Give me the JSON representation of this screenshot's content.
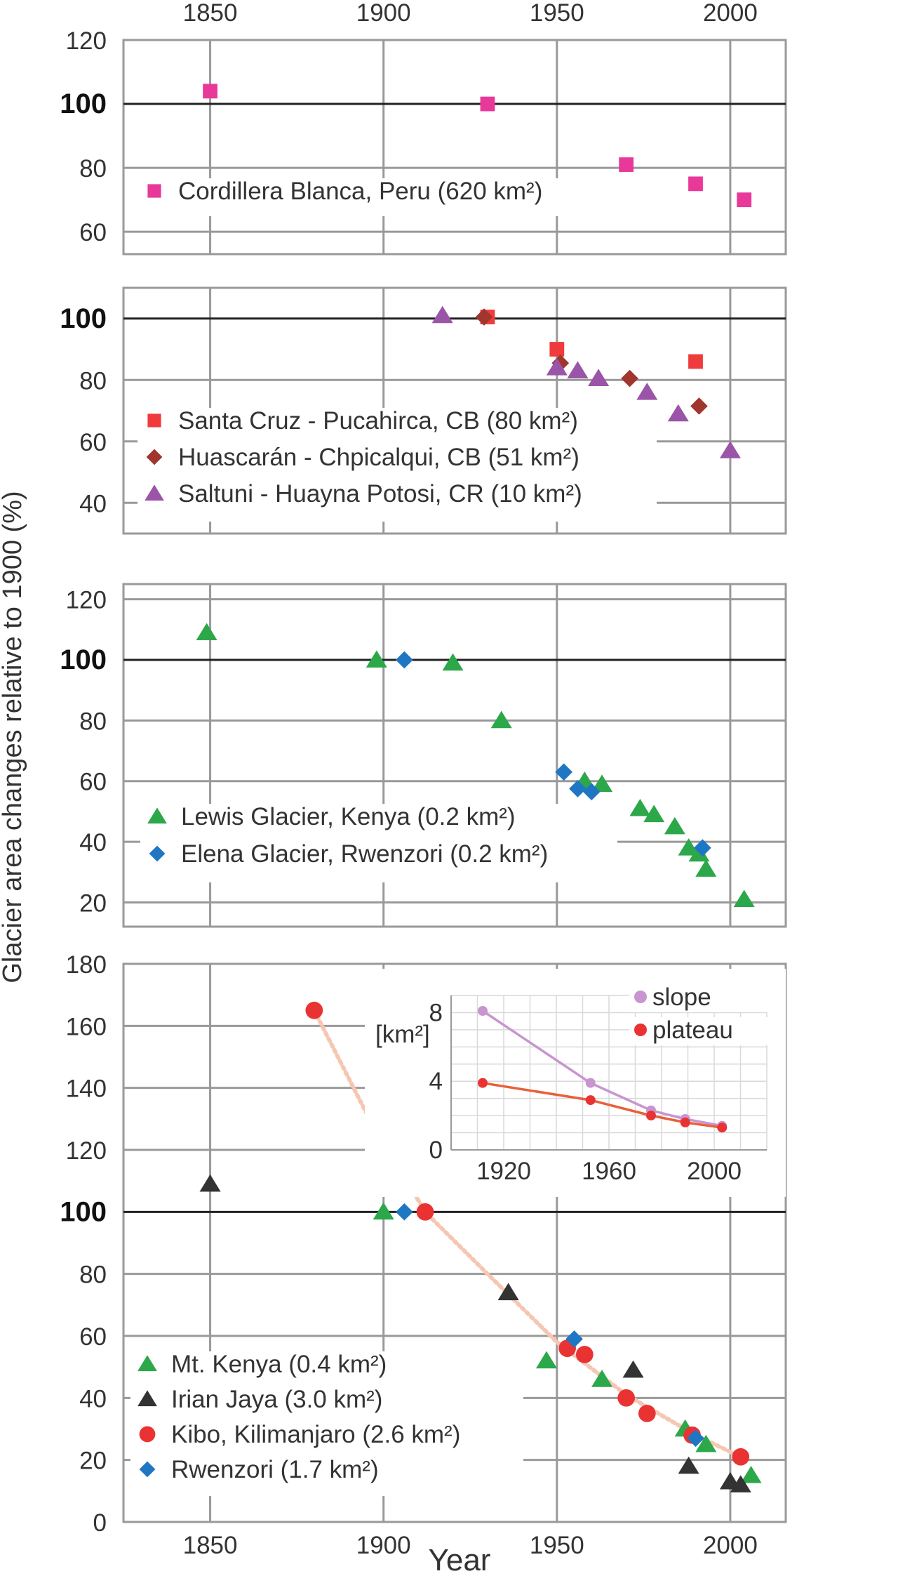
{
  "ylabel": "Glacier area changes relative to 1900 (%)",
  "xlabel": "Year",
  "chart_data": [
    {
      "type": "scatter",
      "xticks": [
        1850,
        1900,
        1950,
        2000
      ],
      "xlim": [
        1825,
        2016
      ],
      "ylim": [
        53,
        120
      ],
      "yticks": [
        60,
        80,
        100,
        120
      ],
      "reference_line": 100,
      "grid": true,
      "legend_position": "bottom-left",
      "series": [
        {
          "name": "Cordillera Blanca, Peru (620 km²)",
          "marker": "square",
          "color": "#e8399a",
          "points": [
            [
              1850,
              104
            ],
            [
              1930,
              100
            ],
            [
              1970,
              81
            ],
            [
              1990,
              75
            ],
            [
              2004,
              70
            ]
          ]
        }
      ]
    },
    {
      "type": "scatter",
      "xlim": [
        1825,
        2016
      ],
      "ylim": [
        30,
        110
      ],
      "yticks": [
        40,
        60,
        80,
        100
      ],
      "reference_line": 100,
      "grid": true,
      "legend_position": "bottom-left",
      "series": [
        {
          "name": "Santa Cruz - Pucahirca, CB (80 km²)",
          "marker": "square",
          "color": "#ef3b3b",
          "points": [
            [
              1930,
              100.5
            ],
            [
              1950,
              90
            ],
            [
              1990,
              86
            ]
          ]
        },
        {
          "name": "Huascarán - Chpicalqui, CB (51 km²)",
          "marker": "diamond",
          "color": "#a0362e",
          "points": [
            [
              1929,
              100.5
            ],
            [
              1951,
              85.5
            ],
            [
              1971,
              80.5
            ],
            [
              1991,
              71.5
            ]
          ]
        },
        {
          "name": "Saltuni - Huayna Potosi, CR (10 km²)",
          "marker": "triangle",
          "color": "#9a55a8",
          "points": [
            [
              1917,
              101
            ],
            [
              1950,
              84
            ],
            [
              1956,
              83
            ],
            [
              1962,
              80.5
            ],
            [
              1976,
              76
            ],
            [
              1985,
              69
            ],
            [
              2000,
              57
            ]
          ]
        }
      ]
    },
    {
      "type": "scatter",
      "xlim": [
        1825,
        2016
      ],
      "ylim": [
        12,
        125
      ],
      "yticks": [
        20,
        40,
        60,
        80,
        100,
        120
      ],
      "reference_line": 100,
      "grid": true,
      "legend_position": "bottom-left",
      "series": [
        {
          "name": "Lewis Glacier, Kenya (0.2 km²)",
          "marker": "triangle",
          "color": "#2ca84a",
          "points": [
            [
              1849,
              109
            ],
            [
              1898,
              100
            ],
            [
              1920,
              99
            ],
            [
              1934,
              80
            ],
            [
              1958,
              60
            ],
            [
              1963,
              59
            ],
            [
              1974,
              51
            ],
            [
              1978,
              49
            ],
            [
              1984,
              45
            ],
            [
              1988,
              38
            ],
            [
              1991,
              36
            ],
            [
              1993,
              31
            ],
            [
              2004,
              21
            ]
          ]
        },
        {
          "name": "Elena Glacier, Rwenzori (0.2 km²)",
          "marker": "diamond",
          "color": "#1f77c4",
          "points": [
            [
              1906,
              100
            ],
            [
              1952,
              63
            ],
            [
              1956,
              57.5
            ],
            [
              1960,
              56.5
            ],
            [
              1992,
              38
            ]
          ]
        }
      ]
    },
    {
      "type": "scatter",
      "xlim": [
        1825,
        2016
      ],
      "ylim": [
        0,
        180
      ],
      "yticks": [
        0,
        20,
        40,
        60,
        80,
        100,
        120,
        140,
        160,
        180
      ],
      "xticks": [
        1850,
        1900,
        1950,
        2000
      ],
      "reference_line": 100,
      "grid": true,
      "legend_position": "bottom-left",
      "series": [
        {
          "name": "Mt. Kenya (0.4 km²)",
          "marker": "triangle",
          "color": "#2ca84a",
          "points": [
            [
              1900,
              100
            ],
            [
              1947,
              52
            ],
            [
              1963,
              46
            ],
            [
              1987,
              30
            ],
            [
              1993,
              25
            ],
            [
              2006,
              15
            ]
          ]
        },
        {
          "name": "Irian Jaya (3.0 km²)",
          "marker": "triangle",
          "color": "#333333",
          "points": [
            [
              1850,
              109
            ],
            [
              1936,
              74
            ],
            [
              1972,
              49
            ],
            [
              1988,
              18
            ],
            [
              2000,
              13
            ],
            [
              2003,
              12
            ]
          ]
        },
        {
          "name": "Kibo, Kilimanjaro (2.6 km²)",
          "marker": "circle",
          "color": "#e93333",
          "points": [
            [
              1880,
              165
            ],
            [
              1912,
              100
            ],
            [
              1953,
              56
            ],
            [
              1958,
              54
            ],
            [
              1970,
              40
            ],
            [
              1976,
              35
            ],
            [
              1989,
              28
            ],
            [
              2003,
              21
            ]
          ]
        },
        {
          "name": "Rwenzori (1.7 km²)",
          "marker": "diamond",
          "color": "#1f77c4",
          "points": [
            [
              1906,
              100
            ],
            [
              1955,
              59
            ],
            [
              1990,
              27
            ]
          ]
        }
      ],
      "trend_line": {
        "style": "dotted",
        "color": "#f5c7b3",
        "points": [
          [
            1880,
            165
          ],
          [
            1895,
            132
          ],
          [
            1912,
            100
          ],
          [
            1930,
            80
          ],
          [
            1950,
            58
          ],
          [
            1970,
            41
          ],
          [
            1990,
            28
          ],
          [
            2003,
            21
          ]
        ]
      },
      "inset": {
        "type": "line",
        "ylabel": "[km²]",
        "yticks": [
          0,
          4,
          8
        ],
        "xticks": [
          1920,
          1960,
          2000
        ],
        "xlim": [
          1900,
          2020
        ],
        "ylim": [
          0,
          9
        ],
        "legend_position": "top-right",
        "series": [
          {
            "name": "slope",
            "color": "#c895d0",
            "marker": "circle",
            "points": [
              [
                1912,
                8.1
              ],
              [
                1953,
                3.9
              ],
              [
                1976,
                2.3
              ],
              [
                1989,
                1.8
              ],
              [
                2003,
                1.4
              ]
            ]
          },
          {
            "name": "plateau",
            "color": "#e93333",
            "line_color": "#e9603a",
            "marker": "circle",
            "points": [
              [
                1912,
                3.9
              ],
              [
                1953,
                2.9
              ],
              [
                1976,
                2.0
              ],
              [
                1989,
                1.6
              ],
              [
                2003,
                1.3
              ]
            ]
          }
        ]
      }
    }
  ]
}
